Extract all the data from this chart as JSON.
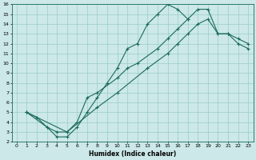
{
  "xlabel": "Humidex (Indice chaleur)",
  "xlim": [
    -0.5,
    23.5
  ],
  "ylim": [
    2,
    16
  ],
  "xticks": [
    0,
    1,
    2,
    3,
    4,
    5,
    6,
    7,
    8,
    9,
    10,
    11,
    12,
    13,
    14,
    15,
    16,
    17,
    18,
    19,
    20,
    21,
    22,
    23
  ],
  "yticks": [
    2,
    3,
    4,
    5,
    6,
    7,
    8,
    9,
    10,
    11,
    12,
    13,
    14,
    15,
    16
  ],
  "bg_color": "#cce8e8",
  "grid_color": "#99cccc",
  "line_color": "#1a6b5a",
  "curve1_x": [
    1,
    2,
    3,
    4,
    5,
    6,
    7,
    8,
    9,
    10,
    11,
    12,
    13,
    14,
    15,
    16,
    17
  ],
  "curve1_y": [
    5.0,
    4.5,
    3.5,
    2.5,
    2.5,
    3.5,
    5.0,
    6.5,
    8.0,
    9.5,
    11.5,
    12.0,
    14.0,
    15.0,
    16.0,
    15.5,
    14.5
  ],
  "curve2_x": [
    1,
    3,
    4,
    5,
    6,
    7,
    8,
    10,
    11,
    12,
    14,
    15,
    16,
    17,
    18,
    19,
    20,
    21,
    22,
    23
  ],
  "curve2_y": [
    5.0,
    3.5,
    3.0,
    3.0,
    4.0,
    6.5,
    7.0,
    8.5,
    9.5,
    10.0,
    11.5,
    12.5,
    13.5,
    14.5,
    15.5,
    15.5,
    13.0,
    13.0,
    12.5,
    12.0
  ],
  "curve3_x": [
    1,
    5,
    8,
    10,
    13,
    15,
    16,
    17,
    18,
    19,
    20,
    21,
    22,
    23
  ],
  "curve3_y": [
    5.0,
    3.0,
    5.5,
    7.0,
    9.5,
    11.0,
    12.0,
    13.0,
    14.0,
    14.5,
    13.0,
    13.0,
    12.0,
    11.5
  ]
}
